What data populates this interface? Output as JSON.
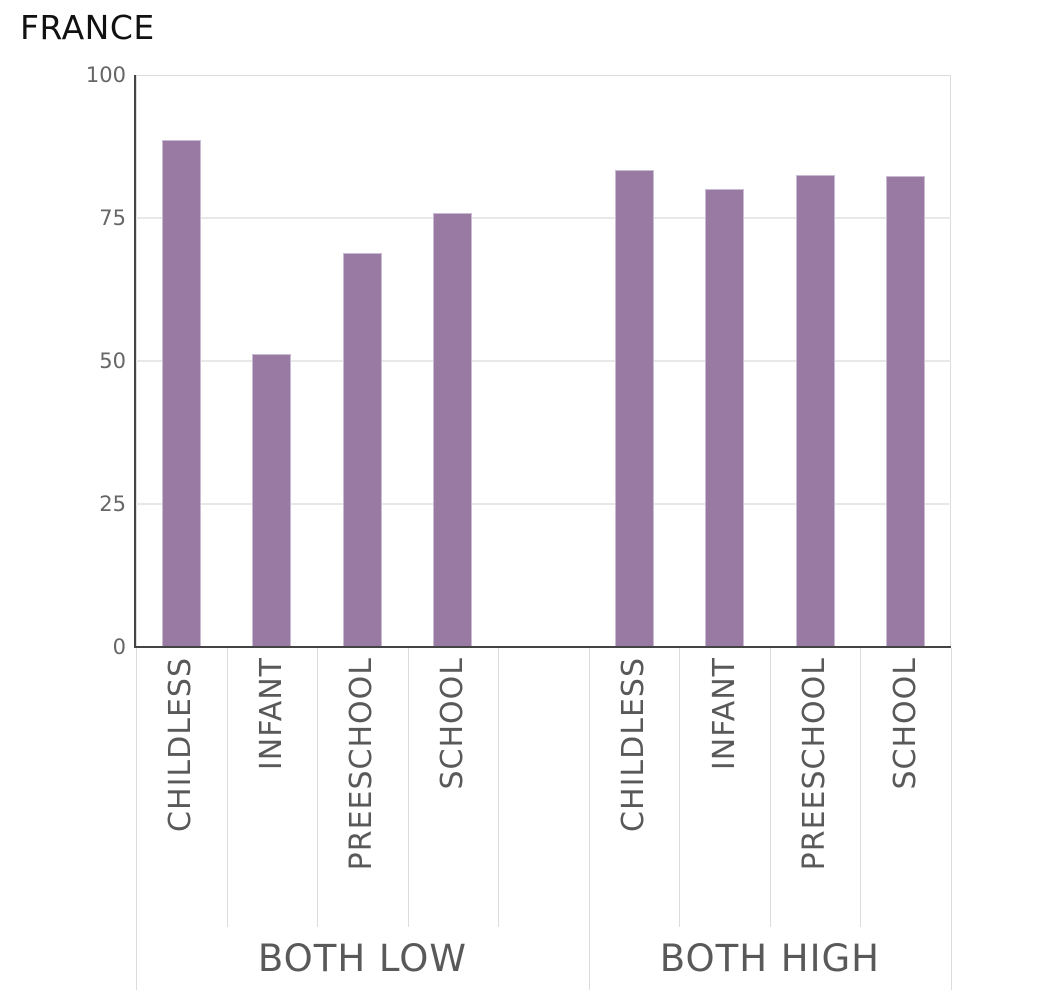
{
  "title": "FRANCE",
  "chart_data": {
    "type": "bar",
    "title": "FRANCE",
    "categories": [
      "CHILDLESS",
      "INFANT",
      "PREESCHOOL",
      "SCHOOL"
    ],
    "series": [
      {
        "name": "BOTH LOW",
        "values": [
          88.6,
          51.2,
          68.9,
          75.9
        ]
      },
      {
        "name": "BOTH HIGH",
        "values": [
          83.4,
          80.1,
          82.5,
          82.4
        ]
      }
    ],
    "ylim": [
      0,
      100
    ],
    "yticks": [
      0,
      25,
      50,
      75,
      100
    ],
    "xlabel": "",
    "ylabel": "",
    "grid": true,
    "legend_position": "none",
    "layout_hint": "two facet groups separated by one empty slot; category labels rotated 90deg; group labels below"
  },
  "colors": {
    "bar_fill": "#987aa3",
    "bar_border": "#c9bbd1",
    "axis_line": "#444444",
    "gridline": "#e8e8e8",
    "plot_border": "#dcdcdc",
    "tick_label": "#666666",
    "category_label": "#595959",
    "group_label": "#595959",
    "title": "#111111",
    "background": "#ffffff"
  }
}
